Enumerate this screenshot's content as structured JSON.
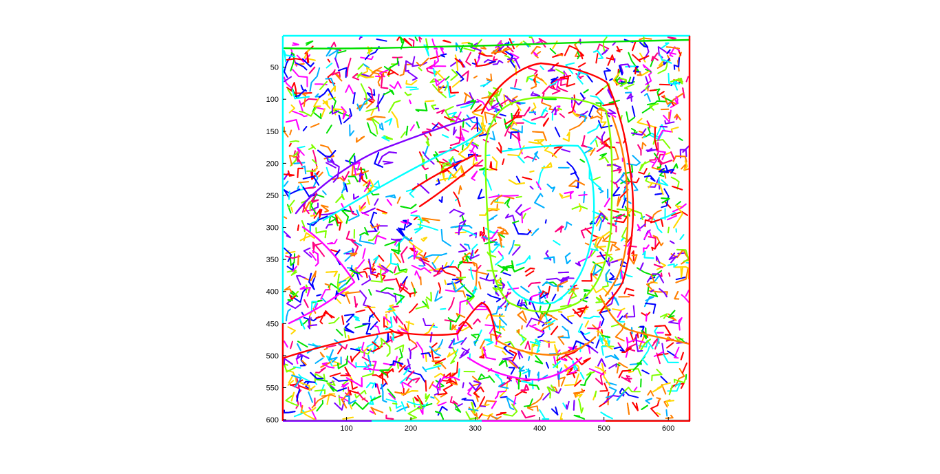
{
  "image": {
    "description_kind": "matlab-figure-edge-image",
    "axes": {
      "x_ticks": [
        "100",
        "200",
        "300",
        "400",
        "500",
        "600"
      ],
      "y_ticks": [
        "50",
        "100",
        "150",
        "200",
        "250",
        "300",
        "350",
        "400",
        "450",
        "500",
        "550",
        "600"
      ],
      "xlim": [
        1,
        634
      ],
      "ylim": [
        1,
        601
      ],
      "y_reversed": true,
      "grid": false
    },
    "palette": [
      "#ff0000",
      "#ff7f00",
      "#ffd700",
      "#7fff00",
      "#00e000",
      "#00ffff",
      "#00b0ff",
      "#0000ff",
      "#8000ff",
      "#ff00ff",
      "#ff007f"
    ]
  }
}
